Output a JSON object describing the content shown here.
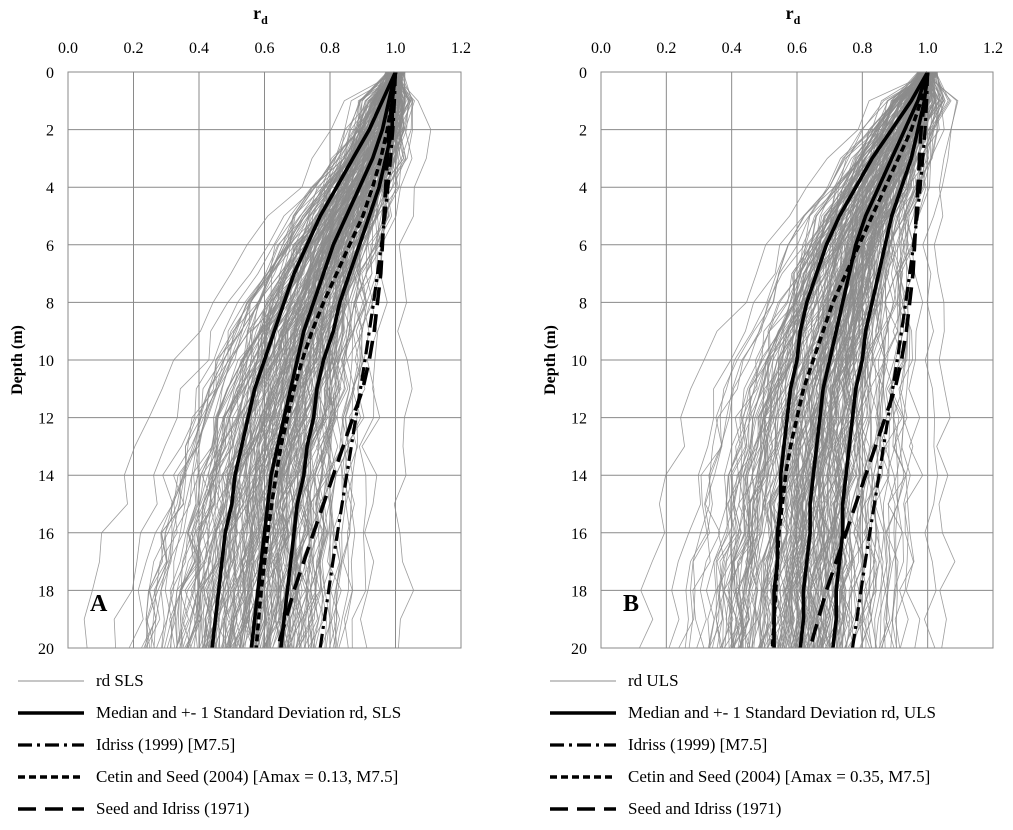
{
  "chart_data": [
    {
      "type": "line",
      "panel_label": "A",
      "title": "",
      "xlabel": "r_d",
      "xlabel_main": "r",
      "xlabel_sub": "d",
      "ylabel": "Depth (m)",
      "xlim": [
        0.0,
        1.2
      ],
      "ylim": [
        20,
        0
      ],
      "x_ticks": [
        "0.0",
        "0.2",
        "0.4",
        "0.6",
        "0.8",
        "1.0",
        "1.2"
      ],
      "y_ticks": [
        "0",
        "2",
        "4",
        "6",
        "8",
        "10",
        "12",
        "14",
        "16",
        "18",
        "20"
      ],
      "grid": true,
      "x_axis_position": "top",
      "depth": [
        0,
        1,
        2,
        3,
        4,
        5,
        6,
        7,
        8,
        9,
        10,
        11,
        12,
        13,
        14,
        15,
        16,
        17,
        18,
        19,
        20
      ],
      "ensemble": {
        "name": "rd SLS",
        "count": 220,
        "median": [
          1.0,
          0.98,
          0.96,
          0.93,
          0.89,
          0.85,
          0.81,
          0.78,
          0.75,
          0.72,
          0.7,
          0.68,
          0.66,
          0.64,
          0.62,
          0.61,
          0.6,
          0.59,
          0.58,
          0.57,
          0.56
        ],
        "spread": [
          0.03,
          0.04,
          0.05,
          0.06,
          0.07,
          0.08,
          0.09,
          0.1,
          0.11,
          0.12,
          0.13,
          0.14,
          0.15,
          0.15,
          0.16,
          0.16,
          0.17,
          0.17,
          0.18,
          0.18,
          0.18
        ]
      },
      "series": [
        {
          "name": "Median and +- 1 Standard Deviation rd, SLS",
          "style": "solid-thick",
          "role": "median",
          "values": [
            1.0,
            0.98,
            0.96,
            0.93,
            0.89,
            0.85,
            0.81,
            0.78,
            0.75,
            0.72,
            0.7,
            0.68,
            0.66,
            0.64,
            0.62,
            0.61,
            0.6,
            0.59,
            0.58,
            0.57,
            0.56
          ]
        },
        {
          "name": "Median and +- 1 Standard Deviation rd, SLS",
          "style": "solid-thick",
          "role": "minus_1sd",
          "values": [
            1.0,
            0.96,
            0.92,
            0.87,
            0.82,
            0.77,
            0.73,
            0.69,
            0.66,
            0.63,
            0.6,
            0.57,
            0.55,
            0.53,
            0.51,
            0.5,
            0.48,
            0.47,
            0.46,
            0.45,
            0.44
          ]
        },
        {
          "name": "Median and +- 1 Standard Deviation rd, SLS",
          "style": "solid-thick",
          "role": "plus_1sd",
          "values": [
            1.0,
            0.99,
            0.99,
            0.97,
            0.95,
            0.92,
            0.89,
            0.86,
            0.83,
            0.81,
            0.78,
            0.76,
            0.75,
            0.73,
            0.72,
            0.7,
            0.69,
            0.68,
            0.67,
            0.66,
            0.65
          ]
        },
        {
          "name": "Idriss (1999) [M7.5]",
          "style": "dash-dot",
          "values": [
            1.0,
            0.997,
            0.992,
            0.985,
            0.977,
            0.968,
            0.957,
            0.945,
            0.933,
            0.92,
            0.907,
            0.893,
            0.879,
            0.865,
            0.851,
            0.837,
            0.823,
            0.809,
            0.796,
            0.783,
            0.77
          ]
        },
        {
          "name": "Cetin and Seed (2004) [Amax = 0.13, M7.5]",
          "style": "dashed-short",
          "values": [
            1.0,
            0.99,
            0.975,
            0.955,
            0.93,
            0.9,
            0.86,
            0.82,
            0.78,
            0.745,
            0.715,
            0.69,
            0.67,
            0.65,
            0.635,
            0.622,
            0.61,
            0.6,
            0.59,
            0.582,
            0.575
          ]
        },
        {
          "name": "Seed and Idriss (1971)",
          "style": "dashed-long",
          "values": [
            1.0,
            0.99,
            0.98,
            0.975,
            0.97,
            0.965,
            0.96,
            0.955,
            0.945,
            0.935,
            0.92,
            0.9,
            0.87,
            0.84,
            0.81,
            0.78,
            0.75,
            0.72,
            0.69,
            0.665,
            0.64
          ]
        }
      ]
    },
    {
      "type": "line",
      "panel_label": "B",
      "title": "",
      "xlabel": "r_d",
      "xlabel_main": "r",
      "xlabel_sub": "d",
      "ylabel": "Depth (m)",
      "xlim": [
        0.0,
        1.2
      ],
      "ylim": [
        20,
        0
      ],
      "x_ticks": [
        "0.0",
        "0.2",
        "0.4",
        "0.6",
        "0.8",
        "1.0",
        "1.2"
      ],
      "y_ticks": [
        "0",
        "2",
        "4",
        "6",
        "8",
        "10",
        "12",
        "14",
        "16",
        "18",
        "20"
      ],
      "grid": true,
      "x_axis_position": "top",
      "depth": [
        0,
        1,
        2,
        3,
        4,
        5,
        6,
        7,
        8,
        9,
        10,
        11,
        12,
        13,
        14,
        15,
        16,
        17,
        18,
        19,
        20
      ],
      "ensemble": {
        "name": "rd ULS",
        "count": 220,
        "median": [
          1.0,
          0.97,
          0.93,
          0.89,
          0.85,
          0.81,
          0.78,
          0.76,
          0.74,
          0.72,
          0.7,
          0.68,
          0.67,
          0.66,
          0.65,
          0.64,
          0.64,
          0.63,
          0.62,
          0.62,
          0.61
        ],
        "spread": [
          0.04,
          0.05,
          0.06,
          0.07,
          0.08,
          0.09,
          0.1,
          0.11,
          0.12,
          0.13,
          0.14,
          0.15,
          0.16,
          0.16,
          0.17,
          0.17,
          0.17,
          0.18,
          0.18,
          0.18,
          0.18
        ]
      },
      "series": [
        {
          "name": "Median and +- 1 Standard Deviation rd, ULS",
          "style": "solid-thick",
          "role": "median",
          "values": [
            1.0,
            0.97,
            0.93,
            0.89,
            0.85,
            0.81,
            0.78,
            0.76,
            0.74,
            0.72,
            0.7,
            0.68,
            0.67,
            0.66,
            0.65,
            0.64,
            0.64,
            0.63,
            0.62,
            0.62,
            0.61
          ]
        },
        {
          "name": "Median and +- 1 Standard Deviation rd, ULS",
          "style": "solid-thick",
          "role": "minus_1sd",
          "values": [
            1.0,
            0.95,
            0.89,
            0.83,
            0.78,
            0.73,
            0.69,
            0.66,
            0.63,
            0.61,
            0.6,
            0.58,
            0.57,
            0.56,
            0.55,
            0.55,
            0.54,
            0.54,
            0.53,
            0.53,
            0.53
          ]
        },
        {
          "name": "Median and +- 1 Standard Deviation rd, ULS",
          "style": "solid-thick",
          "role": "plus_1sd",
          "values": [
            1.0,
            0.99,
            0.97,
            0.95,
            0.92,
            0.89,
            0.87,
            0.85,
            0.83,
            0.81,
            0.8,
            0.78,
            0.77,
            0.76,
            0.75,
            0.74,
            0.74,
            0.73,
            0.72,
            0.72,
            0.71
          ]
        },
        {
          "name": "Idriss (1999) [M7.5]",
          "style": "dash-dot",
          "values": [
            1.0,
            0.997,
            0.992,
            0.985,
            0.977,
            0.968,
            0.957,
            0.945,
            0.933,
            0.92,
            0.907,
            0.893,
            0.879,
            0.865,
            0.851,
            0.837,
            0.823,
            0.809,
            0.796,
            0.783,
            0.77
          ]
        },
        {
          "name": "Cetin and Seed (2004) [Amax = 0.35, M7.5]",
          "style": "dashed-short",
          "values": [
            1.0,
            0.98,
            0.95,
            0.91,
            0.87,
            0.83,
            0.79,
            0.75,
            0.71,
            0.68,
            0.65,
            0.62,
            0.6,
            0.58,
            0.565,
            0.555,
            0.545,
            0.54,
            0.535,
            0.53,
            0.525
          ]
        },
        {
          "name": "Seed and Idriss (1971)",
          "style": "dashed-long",
          "values": [
            1.0,
            0.99,
            0.98,
            0.975,
            0.97,
            0.965,
            0.96,
            0.955,
            0.945,
            0.935,
            0.92,
            0.9,
            0.87,
            0.84,
            0.81,
            0.78,
            0.75,
            0.72,
            0.69,
            0.665,
            0.64
          ]
        }
      ]
    }
  ],
  "legends": [
    [
      {
        "style": "thin-gray",
        "label": "rd SLS"
      },
      {
        "style": "solid-thick",
        "label": "Median and +- 1 Standard Deviation rd, SLS"
      },
      {
        "style": "dash-dot",
        "label": "Idriss (1999) [M7.5]"
      },
      {
        "style": "dashed-short",
        "label": "Cetin and Seed (2004) [Amax = 0.13, M7.5]"
      },
      {
        "style": "dashed-long",
        "label": "Seed and Idriss (1971)"
      }
    ],
    [
      {
        "style": "thin-gray",
        "label": "rd ULS"
      },
      {
        "style": "solid-thick",
        "label": "Median and +- 1 Standard Deviation rd, ULS"
      },
      {
        "style": "dash-dot",
        "label": "Idriss (1999) [M7.5]"
      },
      {
        "style": "dashed-short",
        "label": "Cetin and Seed (2004) [Amax = 0.35, M7.5]"
      },
      {
        "style": "dashed-long",
        "label": "Seed and Idriss (1971)"
      }
    ]
  ],
  "colors": {
    "ensemble": "#8c8c8c",
    "grid": "#8a8a8a",
    "lines": "#000000"
  }
}
